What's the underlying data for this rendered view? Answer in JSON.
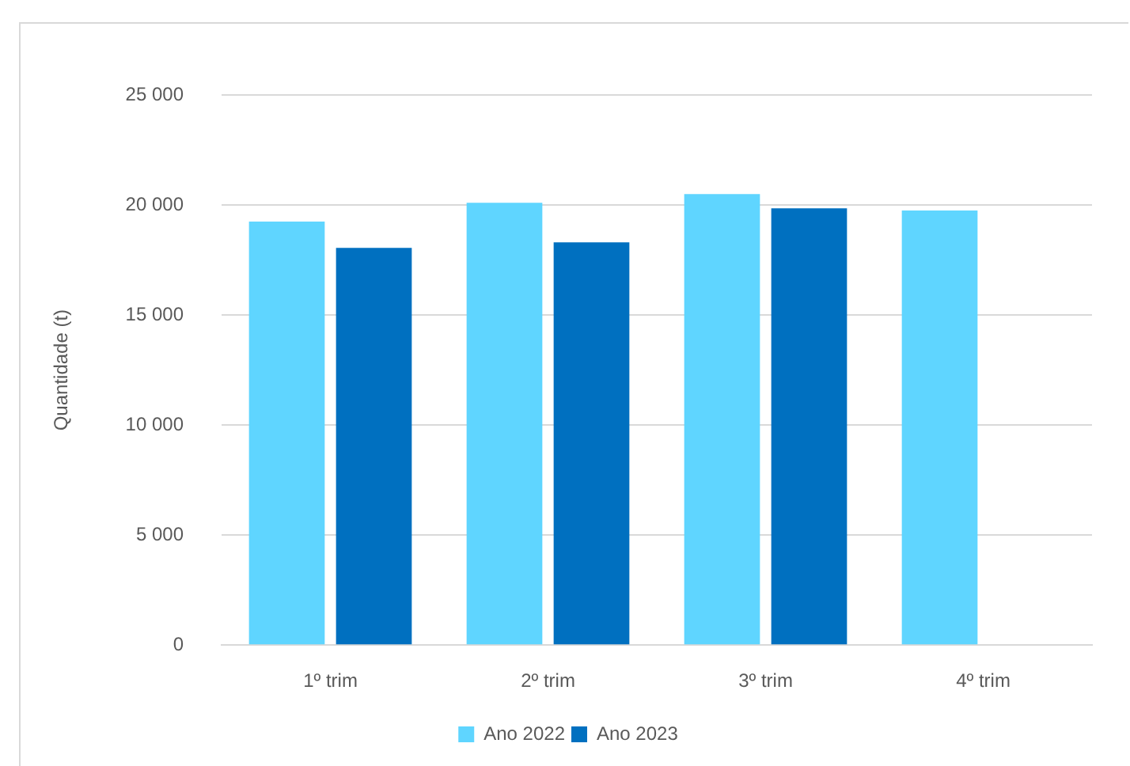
{
  "chart_data": {
    "type": "bar",
    "ylabel": "Quantidade (t)",
    "categories": [
      "1º trim",
      "2º trim",
      "3º trim",
      "4º trim"
    ],
    "series": [
      {
        "name": "Ano 2022",
        "color": "#5fd5ff",
        "values": [
          19250,
          20100,
          20500,
          19750
        ]
      },
      {
        "name": "Ano 2023",
        "color": "#0070c0",
        "values": [
          18050,
          18300,
          19850,
          null
        ]
      }
    ],
    "ylim": [
      0,
      25000
    ],
    "yticks": [
      0,
      {
        "value": 5000,
        "label": "5 000"
      },
      {
        "value": 10000,
        "label": "10 000"
      },
      {
        "value": 15000,
        "label": "15 000"
      },
      {
        "value": 20000,
        "label": "20 000"
      },
      {
        "value": 25000,
        "label": "25 000"
      }
    ],
    "grid": "y",
    "legend": "bottom"
  }
}
